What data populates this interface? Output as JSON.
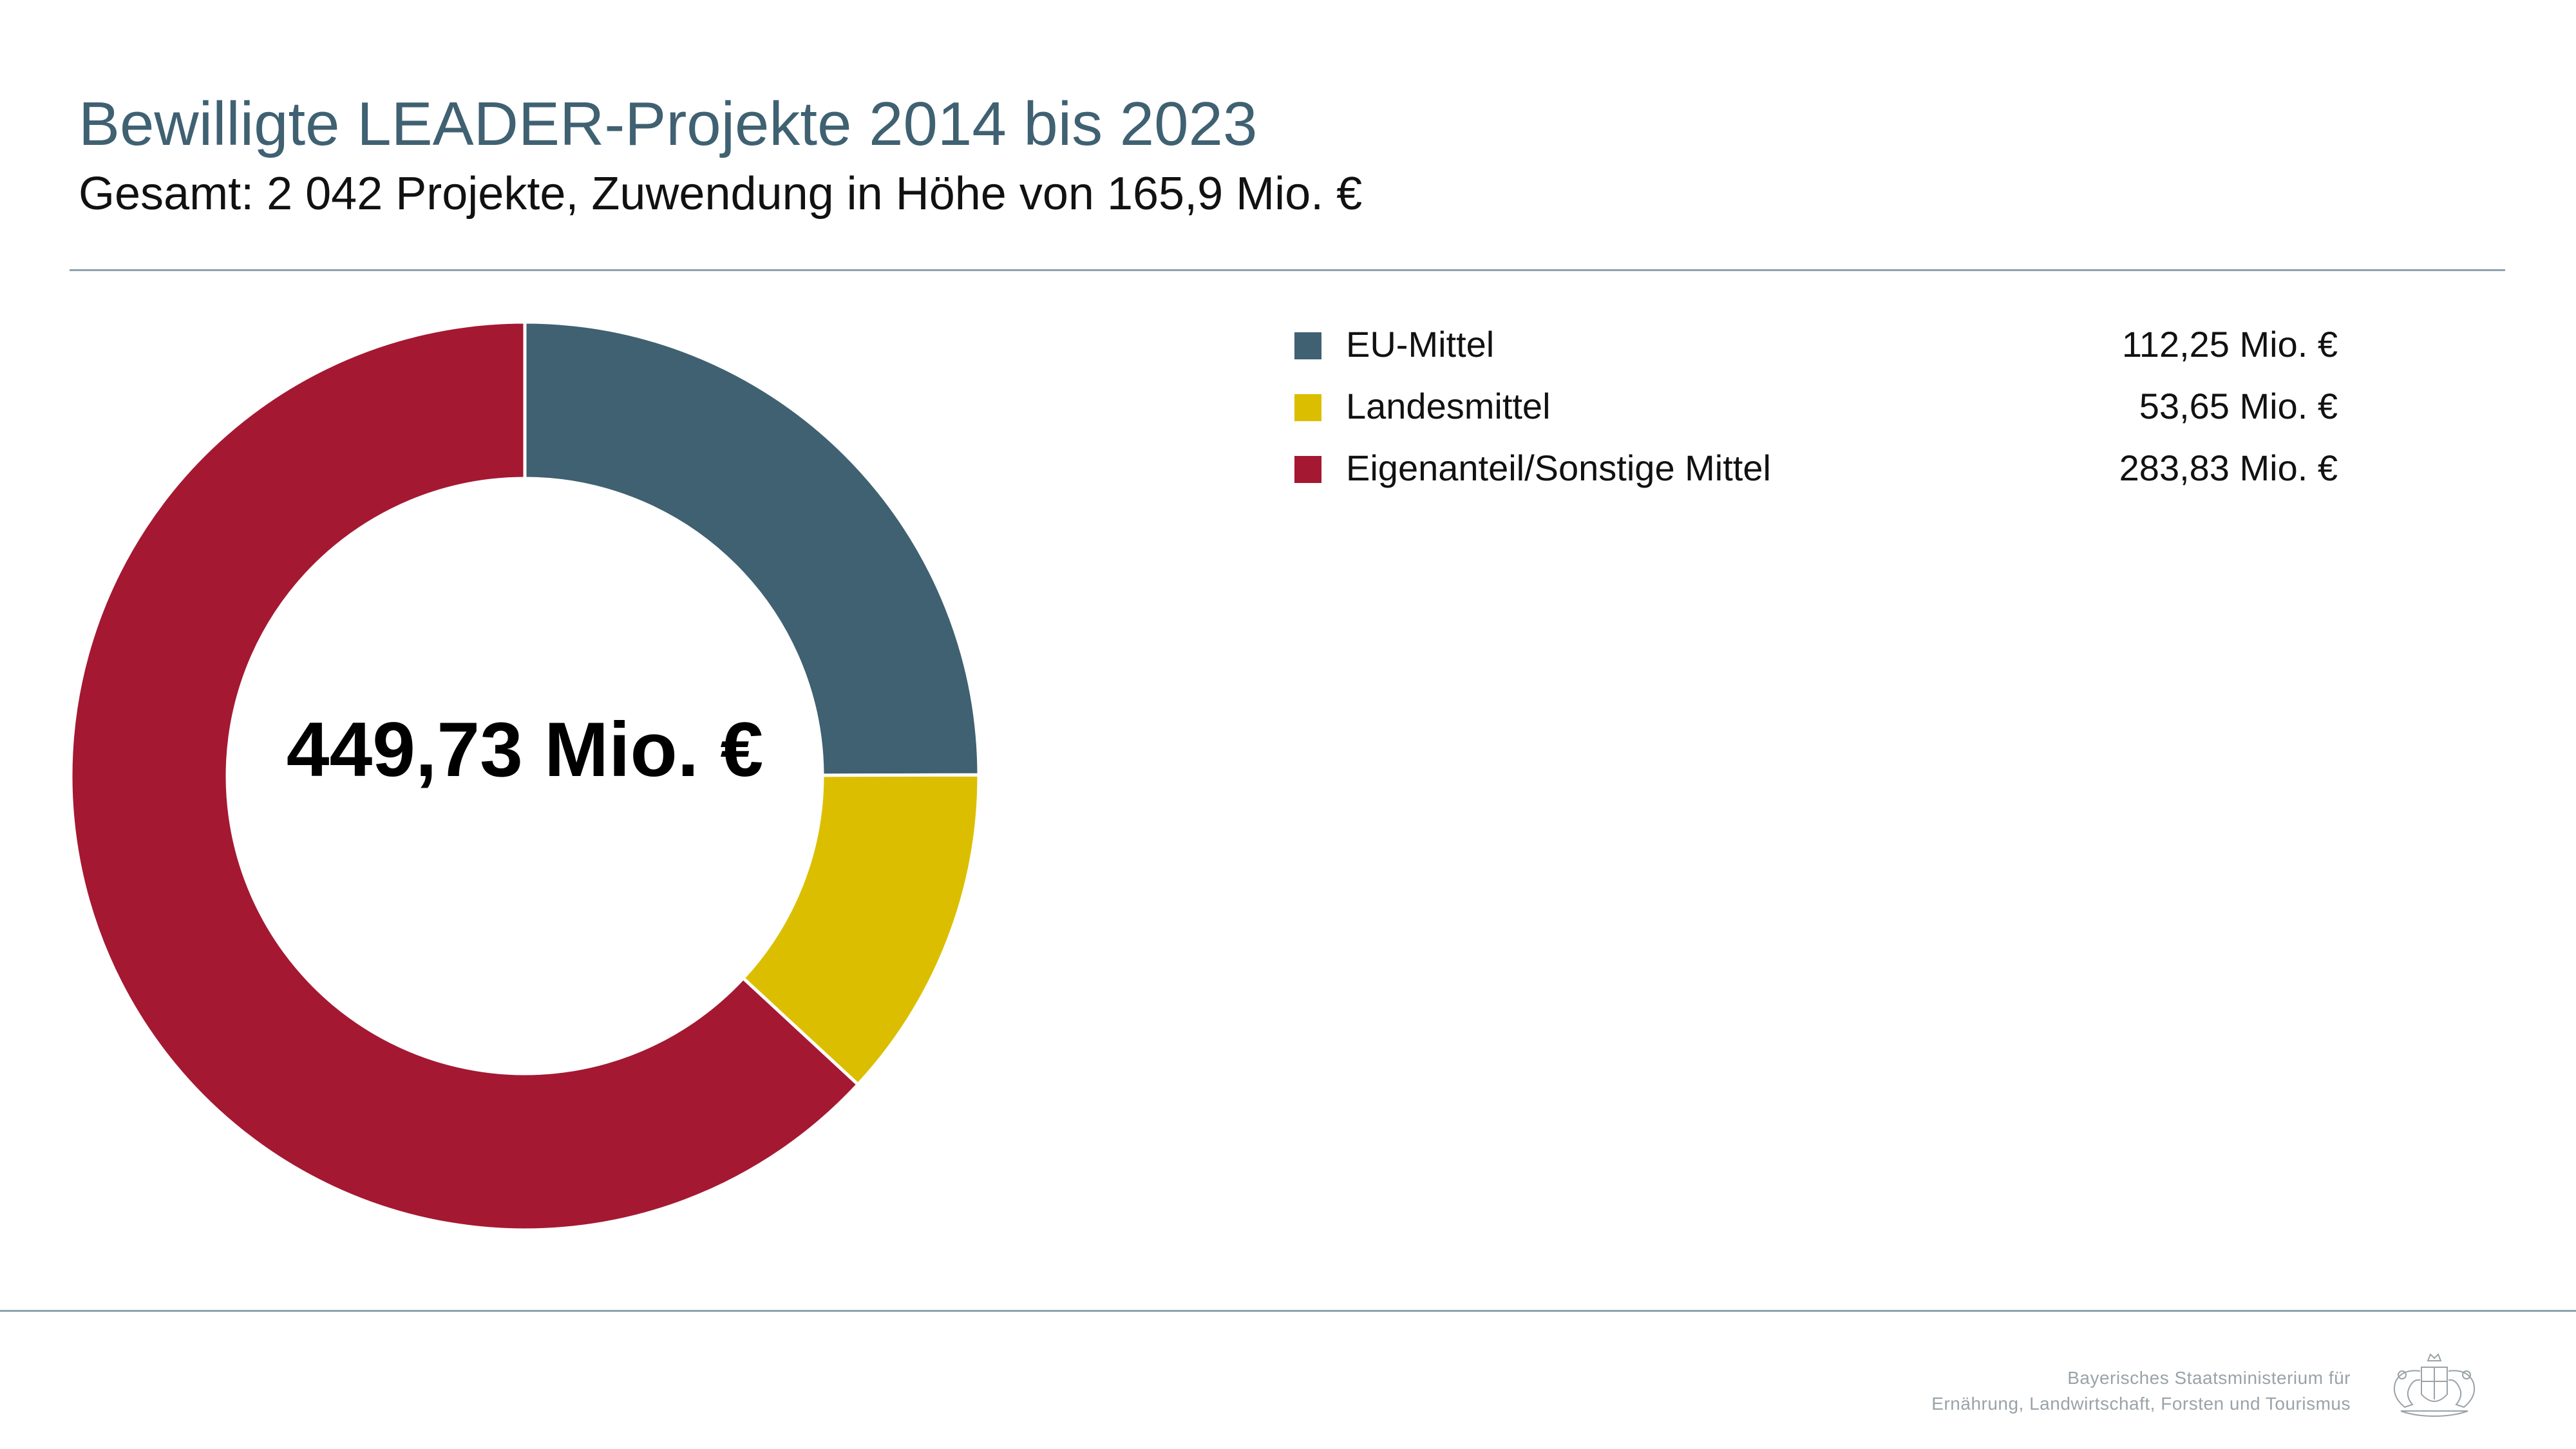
{
  "header": {
    "title": "Bewilligte LEADER-Projekte 2014 bis 2023",
    "subtitle": "Gesamt: 2 042 Projekte, Zuwendung in Höhe von 165,9 Mio. €"
  },
  "chart_data": {
    "type": "pie",
    "variant": "donut",
    "center_label": "449,73 Mio. €",
    "total": 449.73,
    "unit": "Mio. €",
    "legend_position": "right",
    "slices": [
      {
        "name": "EU-Mittel",
        "value": 112.25,
        "value_label": "112,25 Mio. €",
        "color": "#3f6172"
      },
      {
        "name": "Landesmittel",
        "value": 53.65,
        "value_label": "53,65 Mio. €",
        "color": "#dcbe00"
      },
      {
        "name": "Eigenanteil/Sonstige Mittel",
        "value": 283.83,
        "value_label": "283,83 Mio. €",
        "color": "#a51832"
      }
    ]
  },
  "footer": {
    "line1": "Bayerisches Staatsministerium für",
    "line2": "Ernährung, Landwirtschaft, Forsten und Tourismus",
    "logo_icon": "bavarian-coat-of-arms-icon"
  }
}
